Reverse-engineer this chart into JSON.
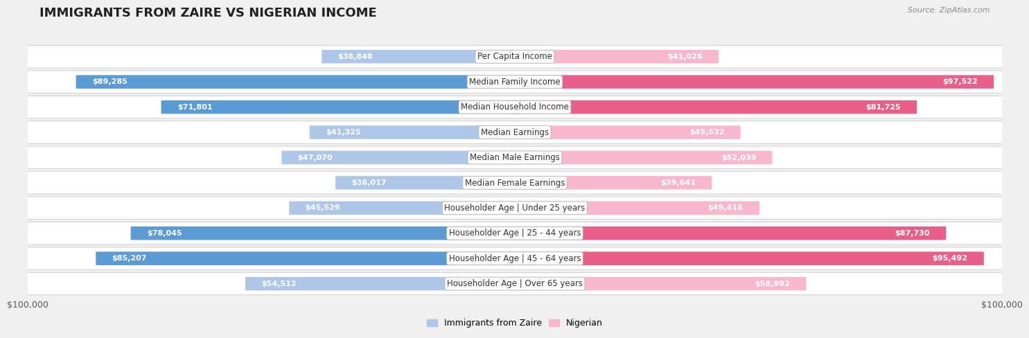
{
  "title": "IMMIGRANTS FROM ZAIRE VS NIGERIAN INCOME",
  "source": "Source: ZipAtlas.com",
  "categories": [
    "Per Capita Income",
    "Median Family Income",
    "Median Household Income",
    "Median Earnings",
    "Median Male Earnings",
    "Median Female Earnings",
    "Householder Age | Under 25 years",
    "Householder Age | 25 - 44 years",
    "Householder Age | 45 - 64 years",
    "Householder Age | Over 65 years"
  ],
  "zaire_values": [
    38848,
    89285,
    71801,
    41325,
    47070,
    36017,
    45529,
    78045,
    85207,
    54512
  ],
  "nigerian_values": [
    41026,
    97522,
    81725,
    45532,
    52039,
    39641,
    49416,
    87730,
    95492,
    58992
  ],
  "zaire_labels": [
    "$38,848",
    "$89,285",
    "$71,801",
    "$41,325",
    "$47,070",
    "$36,017",
    "$45,529",
    "$78,045",
    "$85,207",
    "$54,512"
  ],
  "nigerian_labels": [
    "$41,026",
    "$97,522",
    "$81,725",
    "$45,532",
    "$52,039",
    "$39,641",
    "$49,416",
    "$87,730",
    "$95,492",
    "$58,992"
  ],
  "max_value": 100000,
  "zaire_color_light": "#aec6e8",
  "zaire_color_dark": "#5b9bd5",
  "nigerian_color_light": "#f7b8cd",
  "nigerian_color_dark": "#e8608a",
  "dark_threshold": 60000,
  "background_color": "#f0f0f0",
  "row_bg_color": "#ffffff",
  "row_border_color": "#cccccc",
  "title_fontsize": 13,
  "label_fontsize": 8.5,
  "value_fontsize": 8,
  "legend_zaire": "Immigrants from Zaire",
  "legend_nigerian": "Nigerian"
}
